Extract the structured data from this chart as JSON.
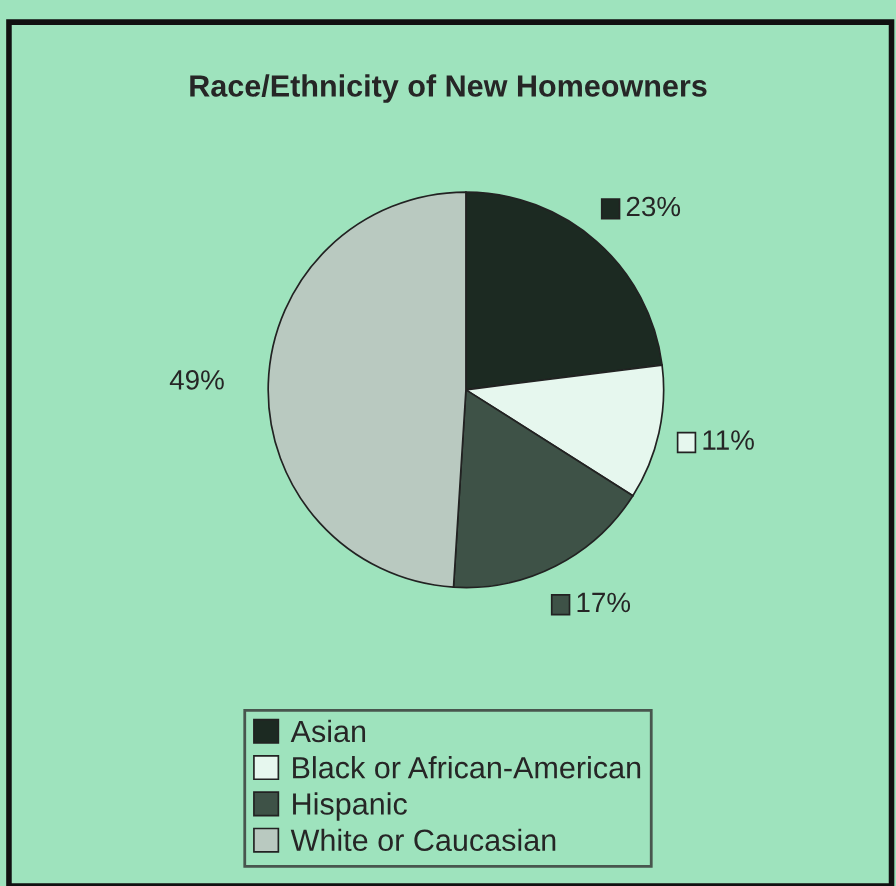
{
  "chart_data": {
    "type": "pie",
    "title": "Race/Ethnicity of New Homeowners",
    "categories": [
      "Asian",
      "Black or African-American",
      "Hispanic",
      "White or Caucasian"
    ],
    "values": [
      23,
      11,
      17,
      49
    ],
    "colors": [
      "#1c2a22",
      "#e6f7ee",
      "#3e5247",
      "#b9c9c0"
    ],
    "value_labels": [
      "23%",
      "11%",
      "17%",
      "49%"
    ],
    "legend": "bottom"
  }
}
